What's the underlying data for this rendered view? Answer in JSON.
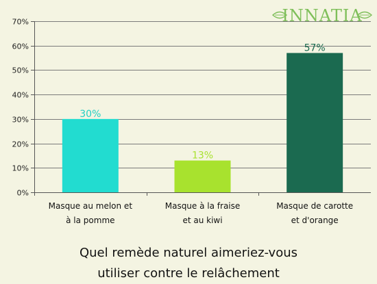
{
  "brand": {
    "name": "INNATIA",
    "color": "#7fbf5a"
  },
  "chart_data": {
    "type": "bar",
    "categories": [
      [
        "Masque au melon et",
        "à la pomme"
      ],
      [
        "Masque à la fraise",
        "et au kiwi"
      ],
      [
        "Masque de carotte",
        "et d'orange"
      ]
    ],
    "values": [
      30,
      13,
      57
    ],
    "data_labels": [
      "30%",
      "13%",
      "57%"
    ],
    "bar_colors": [
      "#22dcd0",
      "#a8e22e",
      "#1b6a50"
    ],
    "label_colors": [
      "#22d0c4",
      "#a8e22e",
      "#1b6a50"
    ],
    "ylim": [
      0,
      70
    ],
    "yticks": [
      0,
      10,
      20,
      30,
      40,
      50,
      60,
      70
    ],
    "ytick_labels": [
      "0%",
      "10%",
      "20%",
      "30%",
      "40%",
      "50%",
      "60%",
      "70%"
    ],
    "grid": true,
    "title": [
      "Quel remède naturel aimeriez-vous",
      "utiliser contre le relâchement"
    ]
  }
}
